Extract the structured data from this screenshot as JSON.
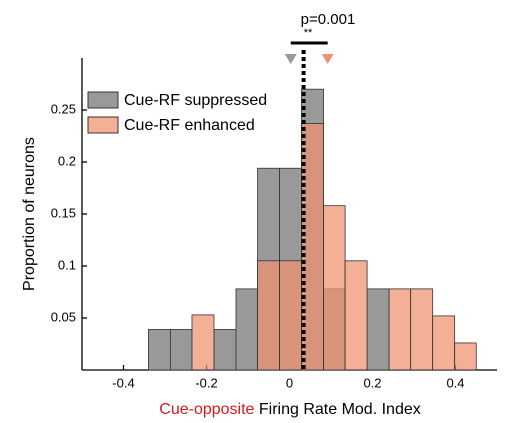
{
  "chart_data": {
    "type": "histogram",
    "bins": [
      -0.34,
      -0.287,
      -0.235,
      -0.182,
      -0.129,
      -0.077,
      -0.024,
      0.029,
      0.082,
      0.134,
      0.187,
      0.24,
      0.292,
      0.345,
      0.398,
      0.45
    ],
    "series": [
      {
        "name": "Cue-RF suppressed",
        "color": "#999999",
        "values": [
          0.039,
          0.039,
          0,
          0.039,
          0.078,
          0.194,
          0.194,
          0.27,
          0.078,
          0,
          0.078,
          0,
          0,
          0,
          0
        ]
      },
      {
        "name": "Cue-RF enhanced",
        "color": "#f0926f",
        "values": [
          0,
          0,
          0.053,
          0,
          0,
          0.105,
          0.105,
          0.237,
          0.158,
          0.105,
          0,
          0.078,
          0.078,
          0.052,
          0.026
        ]
      }
    ],
    "ylabel": "Proportion of neurons",
    "xlabel_parts": [
      {
        "text": "Cue-opposite",
        "color": "#d7191c"
      },
      {
        "text": " Firing Rate Mod. Index",
        "color": "#000000"
      }
    ],
    "xlim": [
      -0.5,
      0.5
    ],
    "ylim": [
      0,
      0.3
    ],
    "xticks": [
      -0.4,
      -0.2,
      0,
      0.2,
      0.4
    ],
    "yticks": [
      0.05,
      0.1,
      0.15,
      0.2,
      0.25
    ],
    "medians": [
      0.003,
      0.092
    ],
    "reference_line": 0.034,
    "annotation": "p=0.001",
    "significance": "**",
    "legend": "upper left"
  }
}
